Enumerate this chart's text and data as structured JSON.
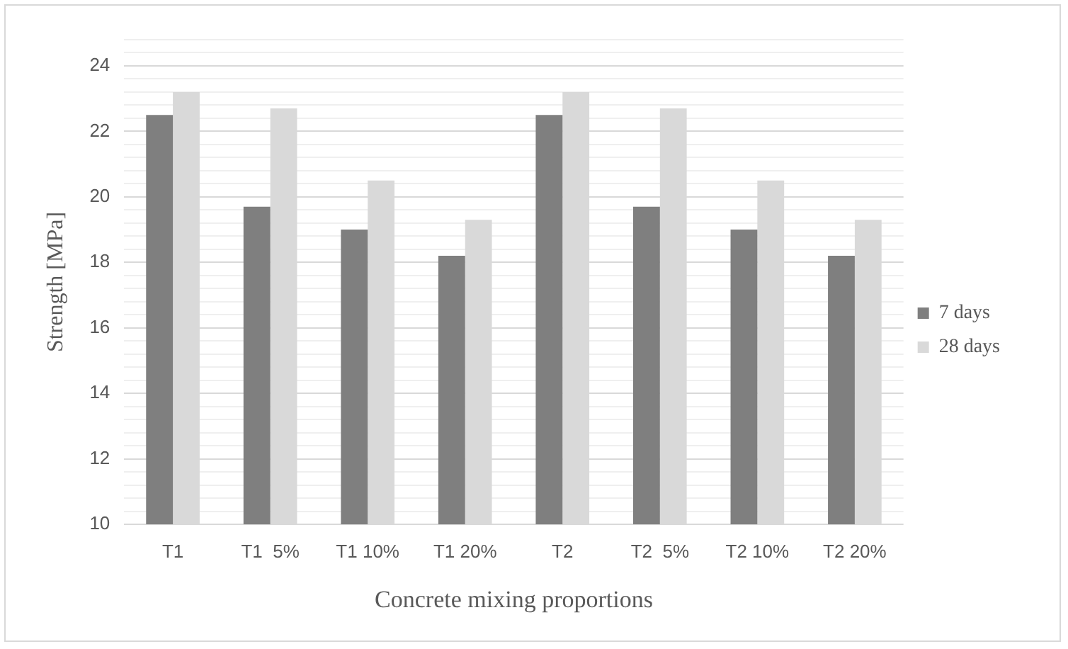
{
  "chart_data": {
    "type": "bar",
    "xlabel": "Concrete mixing proportions",
    "ylabel": "Strength [MPa]",
    "categories": [
      "T1",
      "T1  5%",
      "T1 10%",
      "T1 20%",
      "T2",
      "T2  5%",
      "T2 10%",
      "T2 20%"
    ],
    "series": [
      {
        "name": "7 days",
        "color": "#7f7f7f",
        "values": [
          22.5,
          19.7,
          19.0,
          18.2,
          22.5,
          19.7,
          19.0,
          18.2
        ]
      },
      {
        "name": "28 days",
        "color": "#d9d9d9",
        "values": [
          23.2,
          22.7,
          20.5,
          19.3,
          23.2,
          22.7,
          20.5,
          19.3
        ]
      }
    ],
    "ylim": [
      10,
      24.8
    ],
    "yticks": [
      10,
      {
        "value": 10.4,
        "label": null
      },
      {
        "value": 10.8,
        "label": null
      },
      {
        "value": 11.2,
        "label": null
      },
      {
        "value": 11.6,
        "label": null
      },
      12,
      {
        "value": 12.4,
        "label": null
      },
      {
        "value": 12.8,
        "label": null
      },
      {
        "value": 13.2,
        "label": null
      },
      {
        "value": 13.6,
        "label": null
      },
      14,
      {
        "value": 14.4,
        "label": null
      },
      {
        "value": 14.8,
        "label": null
      },
      {
        "value": 15.2,
        "label": null
      },
      {
        "value": 15.6,
        "label": null
      },
      16,
      {
        "value": 16.4,
        "label": null
      },
      {
        "value": 16.8,
        "label": null
      },
      {
        "value": 17.2,
        "label": null
      },
      {
        "value": 17.6,
        "label": null
      },
      18,
      {
        "value": 18.4,
        "label": null
      },
      {
        "value": 18.8,
        "label": null
      },
      {
        "value": 19.2,
        "label": null
      },
      {
        "value": 19.6,
        "label": null
      },
      20,
      {
        "value": 20.4,
        "label": null
      },
      {
        "value": 20.8,
        "label": null
      },
      {
        "value": 21.2,
        "label": null
      },
      {
        "value": 21.6,
        "label": null
      },
      22,
      {
        "value": 22.4,
        "label": null
      },
      {
        "value": 22.8,
        "label": null
      },
      {
        "value": 23.2,
        "label": null
      },
      {
        "value": 23.6,
        "label": null
      },
      24,
      {
        "value": 24.4,
        "label": null
      },
      {
        "value": 24.8,
        "label": null
      }
    ],
    "grid": "y",
    "legend": "right"
  }
}
